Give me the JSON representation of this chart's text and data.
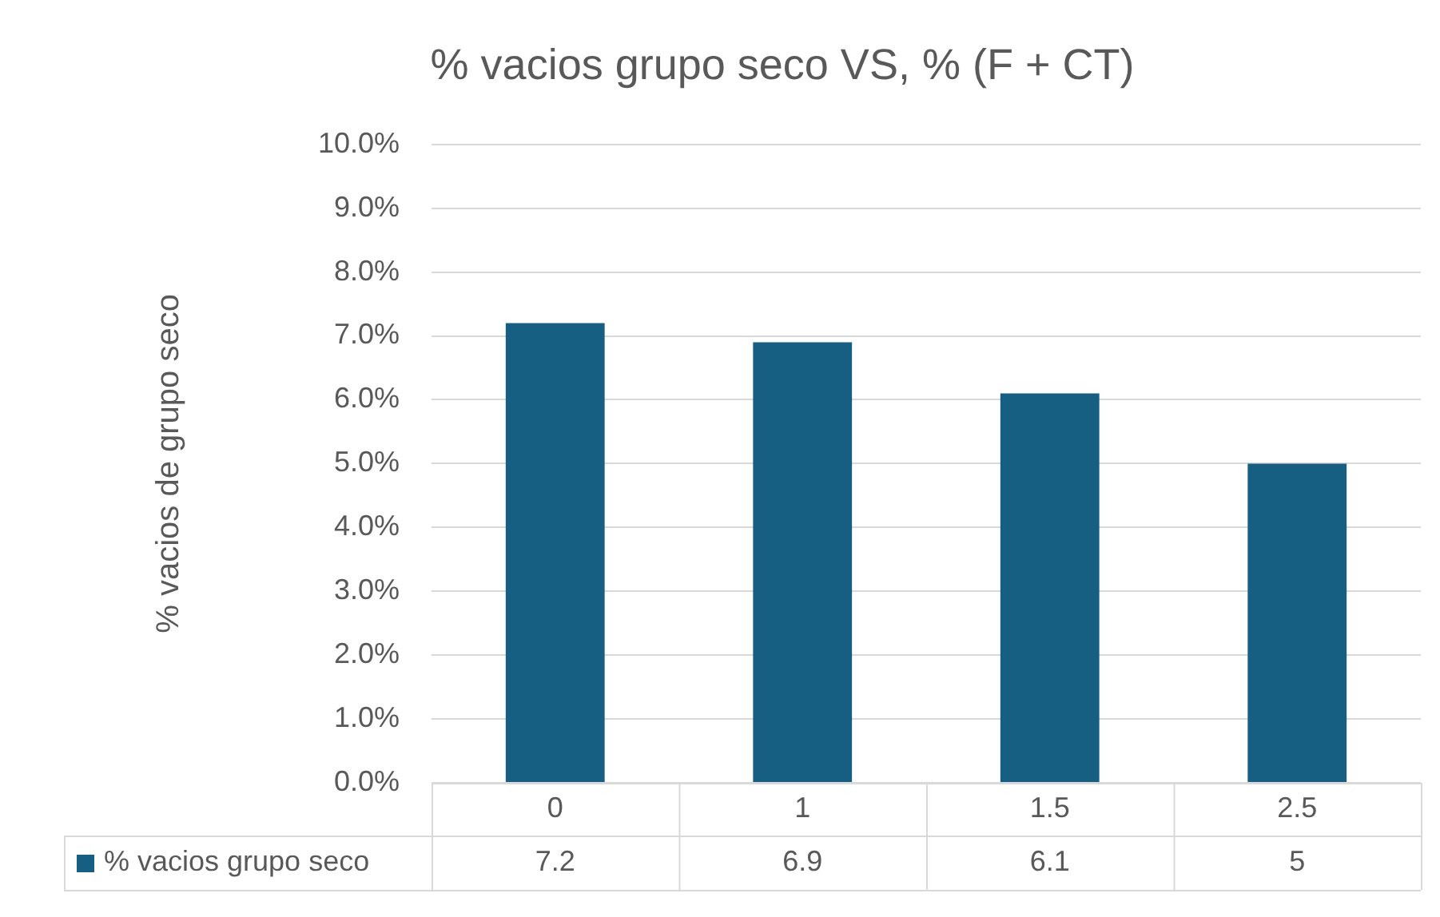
{
  "chart_data": {
    "type": "bar",
    "title": "% vacios grupo seco VS, % (F + CT)",
    "ylabel": "% vacios de grupo seco",
    "categories": [
      "0",
      "1",
      "1.5",
      "2.5"
    ],
    "series": [
      {
        "name": "% vacios grupo seco",
        "color": "#165f82",
        "values": [
          7.2,
          6.9,
          6.1,
          5
        ]
      }
    ],
    "ylim": [
      0,
      10
    ],
    "yticks": [
      {
        "value": 0,
        "label": "0.0%"
      },
      {
        "value": 1,
        "label": "1.0%"
      },
      {
        "value": 2,
        "label": "2.0%"
      },
      {
        "value": 3,
        "label": "3.0%"
      },
      {
        "value": 4,
        "label": "4.0%"
      },
      {
        "value": 5,
        "label": "5.0%"
      },
      {
        "value": 6,
        "label": "6.0%"
      },
      {
        "value": 7,
        "label": "7.0%"
      },
      {
        "value": 8,
        "label": "8.0%"
      },
      {
        "value": 9,
        "label": "9.0%"
      },
      {
        "value": 10,
        "label": "10.0%"
      }
    ],
    "grid": "y",
    "legend": "bottom",
    "data_labels": true
  }
}
